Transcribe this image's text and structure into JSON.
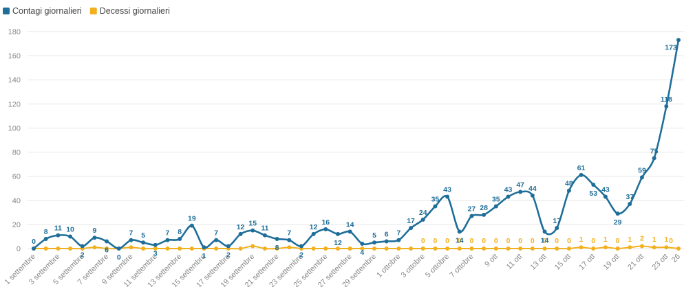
{
  "chart_data": {
    "type": "line",
    "categories": [
      "1 settembre",
      null,
      "3 settembre",
      null,
      "5 settembre",
      null,
      "7 settembre",
      null,
      "9 settembre",
      null,
      "11 settembre",
      null,
      "13 settembre",
      null,
      "15 settembre",
      null,
      "17 settembre",
      null,
      "19 settembre",
      null,
      "21 settembre",
      null,
      "23 settembre",
      null,
      "25 settembre",
      null,
      "27 settembre",
      null,
      "29 settembre",
      null,
      "1 ottobre",
      null,
      "3 ottobre",
      null,
      "5 ottobre",
      null,
      "7 ottobre",
      null,
      "9 ott",
      null,
      "11 ott",
      null,
      "13 ott",
      null,
      "15 ott",
      null,
      "17 ott",
      null,
      "19 ott",
      null,
      "21 ott",
      null,
      "23 ott",
      "26"
    ],
    "series": [
      {
        "name": "Contagi giornalieri",
        "color": "#1f6e99",
        "values": [
          0,
          8,
          11,
          10,
          2,
          9,
          6,
          0,
          7,
          5,
          3,
          7,
          8,
          19,
          1,
          7,
          2,
          12,
          15,
          11,
          8,
          7,
          2,
          12,
          16,
          12,
          14,
          4,
          5,
          6,
          7,
          17,
          24,
          35,
          43,
          14,
          27,
          28,
          35,
          43,
          47,
          44,
          14,
          17,
          48,
          61,
          53,
          43,
          29,
          37,
          59,
          75,
          118,
          173
        ]
      },
      {
        "name": "Decessi giornalieri",
        "color": "#f2b01e",
        "values": [
          0,
          0,
          0,
          0,
          0,
          1,
          0,
          0,
          1,
          0,
          0,
          0,
          0,
          0,
          0,
          0,
          0,
          0,
          2,
          0,
          0,
          1,
          0,
          0,
          0,
          0,
          0,
          0,
          0,
          0,
          0,
          0,
          0,
          0,
          0,
          0,
          0,
          0,
          0,
          0,
          0,
          0,
          0,
          0,
          0,
          1,
          0,
          1,
          0,
          1,
          2,
          1,
          1,
          0
        ]
      }
    ],
    "ylim": [
      0,
      180
    ],
    "yticks": [
      0,
      20,
      40,
      60,
      80,
      100,
      120,
      140,
      160,
      180
    ],
    "grid": true,
    "legend": "top-left"
  }
}
